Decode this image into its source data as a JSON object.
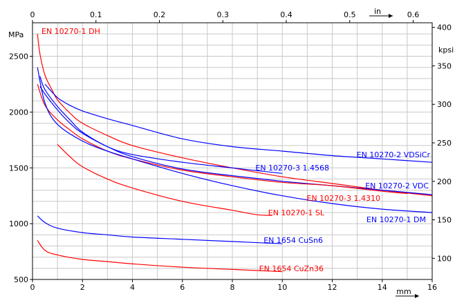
{
  "chart_data": {
    "type": "line",
    "axes": {
      "bottom": {
        "unit": "mm",
        "range": [
          0,
          16
        ],
        "ticks": [
          0,
          2,
          4,
          6,
          8,
          10,
          12,
          14,
          16
        ]
      },
      "top": {
        "unit": "in",
        "range": [
          0,
          0.63
        ],
        "ticks": [
          0,
          0.1,
          0.2,
          0.3,
          0.4,
          0.5,
          0.6
        ],
        "tick_labels": [
          "0",
          "0.1",
          "0.2",
          "0.3",
          "0.4",
          "0.5",
          "0.6"
        ]
      },
      "left": {
        "unit": "MPa",
        "range": [
          500,
          2800
        ],
        "ticks": [
          500,
          1000,
          1500,
          2000,
          2500
        ]
      },
      "right": {
        "unit": "kpsi",
        "range": [
          72.5,
          406
        ],
        "ticks": [
          100,
          150,
          200,
          250,
          300,
          350,
          400
        ]
      }
    },
    "grid": true,
    "colors": {
      "red": "#ff0000",
      "blue": "#0000ff"
    },
    "series": [
      {
        "name": "EN 10270-1 DH",
        "color": "#ff0000",
        "x": [
          0.2,
          0.3,
          0.5,
          0.8,
          1.0,
          1.5,
          2.0,
          3.0,
          4.0,
          6.0,
          8.0,
          10.0,
          12.0,
          14.0,
          16.0
        ],
        "y": [
          2700,
          2520,
          2330,
          2190,
          2110,
          1990,
          1900,
          1790,
          1700,
          1590,
          1500,
          1420,
          1360,
          1300,
          1250
        ]
      },
      {
        "name": "EN 10270-2 VDSiCr",
        "color": "#0000ff",
        "x": [
          0.5,
          1.0,
          1.5,
          2.0,
          3.0,
          4.0,
          6.0,
          8.0,
          10.0,
          12.0,
          14.0,
          16.0
        ],
        "y": [
          2250,
          2130,
          2060,
          2010,
          1940,
          1880,
          1760,
          1690,
          1650,
          1610,
          1580,
          1550
        ]
      },
      {
        "name": "EN 10270-3 1.4568",
        "color": "#0000ff",
        "x": [
          0.3,
          0.5,
          1.0,
          1.5,
          2.0,
          3.0,
          4.0,
          6.0,
          8.0,
          10.0
        ],
        "y": [
          2320,
          2200,
          2050,
          1930,
          1820,
          1690,
          1620,
          1550,
          1500,
          1450
        ]
      },
      {
        "name": "EN 10270-2 VDC",
        "color": "#0000ff",
        "x": [
          0.3,
          0.5,
          1.0,
          1.5,
          2.0,
          3.0,
          4.0,
          6.0,
          8.0,
          10.0,
          12.0,
          14.0,
          16.0
        ],
        "y": [
          2230,
          2160,
          2020,
          1900,
          1810,
          1690,
          1600,
          1490,
          1430,
          1380,
          1340,
          1300,
          1260
        ]
      },
      {
        "name": "EN 10270-3 1.4310",
        "color": "#ff0000",
        "x": [
          0.2,
          0.5,
          1.0,
          1.5,
          2.0,
          3.0,
          4.0,
          6.0,
          8.0,
          10.0,
          12.0,
          14.0,
          15.0
        ],
        "y": [
          2250,
          2060,
          1930,
          1840,
          1760,
          1650,
          1580,
          1480,
          1420,
          1370,
          1340,
          1290,
          1270
        ]
      },
      {
        "name": "EN 10270-1 DM",
        "color": "#0000ff",
        "x": [
          0.2,
          0.5,
          1.0,
          2.0,
          3.0,
          4.0,
          6.0,
          8.0,
          10.0,
          12.0,
          14.0,
          16.0
        ],
        "y": [
          2400,
          2080,
          1890,
          1740,
          1650,
          1580,
          1450,
          1340,
          1250,
          1180,
          1130,
          1100
        ]
      },
      {
        "name": "EN 10270-1 SL",
        "color": "#ff0000",
        "x": [
          1.0,
          1.5,
          2.0,
          3.0,
          4.0,
          6.0,
          8.0,
          9.0,
          9.6
        ],
        "y": [
          1710,
          1600,
          1510,
          1400,
          1320,
          1200,
          1120,
          1080,
          1075
        ]
      },
      {
        "name": "EN 1654 CuSn6",
        "color": "#0000ff",
        "x": [
          0.2,
          0.5,
          1.0,
          2.0,
          3.0,
          4.0,
          6.0,
          8.0,
          10.0
        ],
        "y": [
          1070,
          1010,
          960,
          920,
          900,
          880,
          860,
          840,
          820
        ]
      },
      {
        "name": "EN 1654 CuZn36",
        "color": "#ff0000",
        "x": [
          0.2,
          0.5,
          1.0,
          2.0,
          3.0,
          4.0,
          6.0,
          8.0,
          10.0
        ],
        "y": [
          850,
          760,
          720,
          680,
          660,
          640,
          610,
          590,
          570
        ]
      }
    ]
  }
}
